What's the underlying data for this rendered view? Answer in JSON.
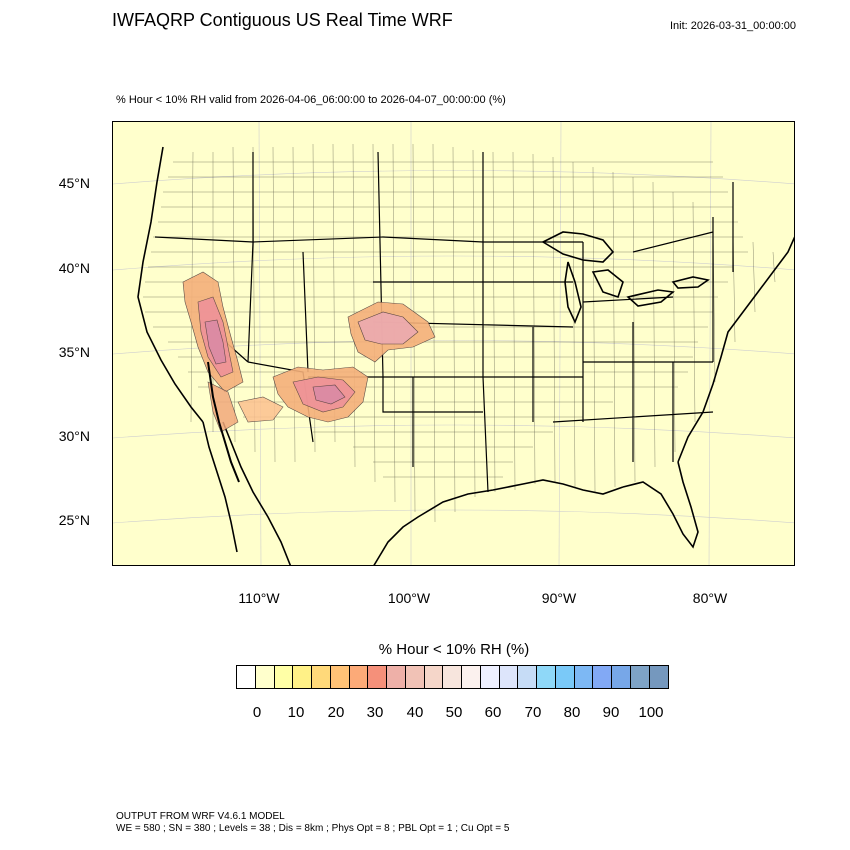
{
  "header": {
    "title": "IWFAQRP Contiguous US Real Time WRF",
    "init": "Init: 2026-03-31_00:00:00",
    "subtitle": "% Hour < 10% RH valid from 2026-04-06_06:00:00 to 2026-04-07_00:00:00   (%)"
  },
  "map": {
    "background_color": "#ffffcc",
    "lat_labels": [
      "45°N",
      "40°N",
      "35°N",
      "30°N",
      "25°N"
    ],
    "lon_labels": [
      "110°W",
      "100°W",
      "90°W",
      "80°W"
    ],
    "features": [
      "state-boundaries",
      "county-boundaries",
      "coastline",
      "rh-contours"
    ],
    "shaded_regions": [
      "southwest-deserts",
      "southern-high-plains"
    ]
  },
  "colorbar": {
    "title": "% Hour < 10% RH  (%)",
    "colors": [
      "#ffffff",
      "#ffffcc",
      "#ffffa6",
      "#fff187",
      "#ffd97a",
      "#ffc276",
      "#fcaa78",
      "#f5907a",
      "#eeb0a8",
      "#f1c2b6",
      "#f5d6c9",
      "#f7e5dd",
      "#fbf1ee",
      "#eef0ff",
      "#dde5fb",
      "#c6dcf6",
      "#8fd8f8",
      "#7ac9f8",
      "#7db8f4",
      "#82a9f5",
      "#77a7e8",
      "#7ea3c6",
      "#7598be"
    ],
    "labels": [
      "0",
      "10",
      "20",
      "30",
      "40",
      "50",
      "60",
      "70",
      "80",
      "90",
      "100"
    ]
  },
  "footer": {
    "line1": "OUTPUT FROM WRF V4.6.1 MODEL",
    "line2": "WE = 580 ; SN = 380 ; Levels = 38 ; Dis = 8km ; Phys Opt = 8 ; PBL Opt = 1 ; Cu Opt = 5"
  }
}
